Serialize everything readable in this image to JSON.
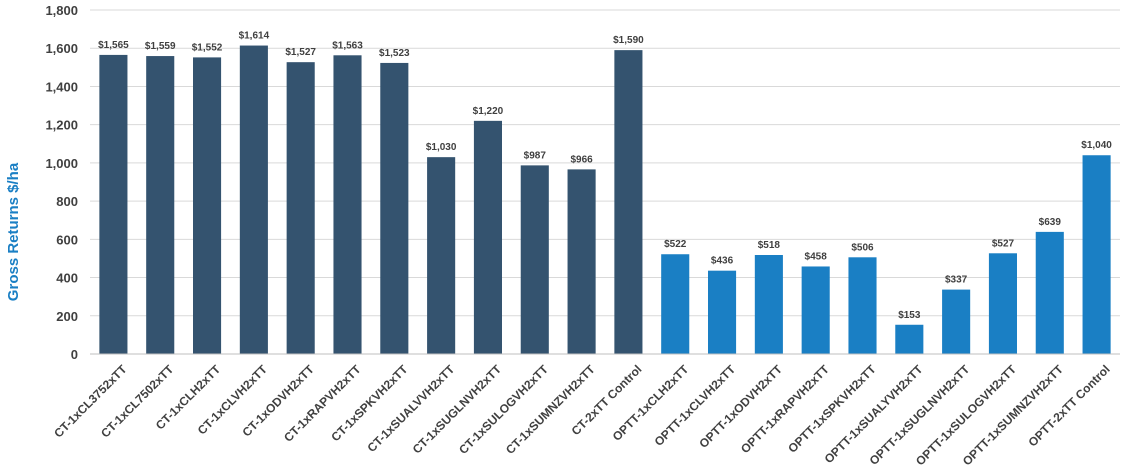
{
  "colors": {
    "ct": "#34536f",
    "optt": "#1a7fc4",
    "ylabel": "#1a7fc4"
  },
  "chart_data": {
    "type": "bar",
    "ylabel": "Gross Returns $/ha",
    "ylim": [
      0,
      1800
    ],
    "yticks": [
      0,
      200,
      400,
      600,
      800,
      1000,
      1200,
      1400,
      1600,
      1800
    ],
    "ytick_labels": [
      "0",
      "200",
      "400",
      "600",
      "800",
      "1,000",
      "1,200",
      "1,400",
      "1,600",
      "1,800"
    ],
    "grid": true,
    "categories": [
      "CT-1xCL3752xTT",
      "CT-1xCL7502xTT",
      "CT-1xCLH2xTT",
      "CT-1xCLVH2xTT",
      "CT-1xODVH2xTT",
      "CT-1xRAPVH2xTT",
      "CT-1xSPKVH2xTT",
      "CT-1xSUALVVH2xTT",
      "CT-1xSUGLNVH2xTT",
      "CT-1xSULOGVH2xTT",
      "CT-1xSUMNZVH2xTT",
      "CT-2xTT Control",
      "OPTT-1xCLH2xTT",
      "OPTT-1xCLVH2xTT",
      "OPTT-1xODVH2xTT",
      "OPTT-1xRAPVH2xTT",
      "OPTT-1xSPKVH2xTT",
      "OPTT-1xSUALYVH2xTT",
      "OPTT-1xSUGLNVH2xTT",
      "OPTT-1xSULOGVH2xTT",
      "OPTT-1xSUMNZVH2xTT",
      "OPTT-2xTT Control"
    ],
    "values": [
      1565,
      1559,
      1552,
      1614,
      1527,
      1563,
      1523,
      1030,
      1220,
      987,
      966,
      1590,
      522,
      436,
      518,
      458,
      506,
      153,
      337,
      527,
      639,
      1040
    ],
    "data_labels": [
      "$1,565",
      "$1,559",
      "$1,552",
      "$1,614",
      "$1,527",
      "$1,563",
      "$1,523",
      "$1,030",
      "$1,220",
      "$987",
      "$966",
      "$1,590",
      "$522",
      "$436",
      "$518",
      "$458",
      "$506",
      "$153",
      "$337",
      "$527",
      "$639",
      "$1,040"
    ],
    "groups": [
      "ct",
      "ct",
      "ct",
      "ct",
      "ct",
      "ct",
      "ct",
      "ct",
      "ct",
      "ct",
      "ct",
      "ct",
      "optt",
      "optt",
      "optt",
      "optt",
      "optt",
      "optt",
      "optt",
      "optt",
      "optt",
      "optt"
    ]
  }
}
